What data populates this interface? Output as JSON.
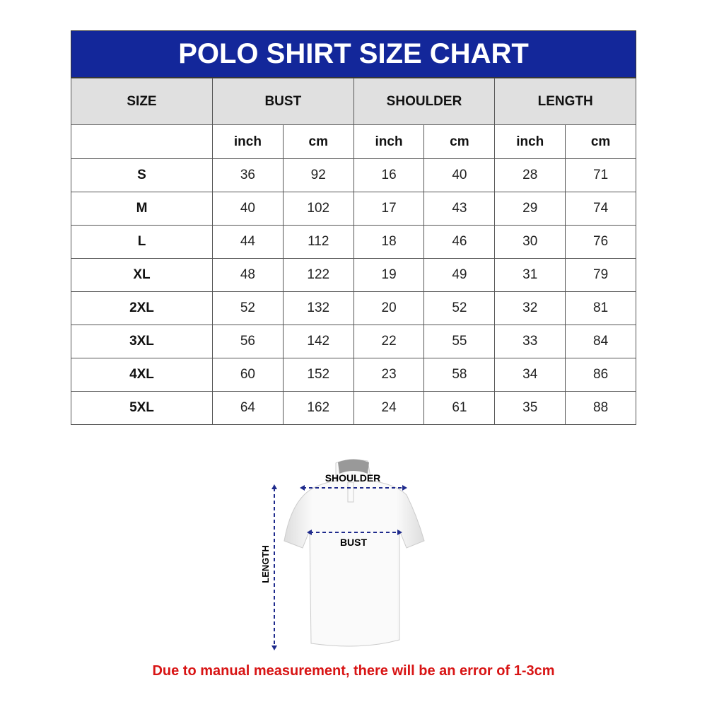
{
  "title": "POLO SHIRT SIZE CHART",
  "headers": [
    "SIZE",
    "BUST",
    "SHOULDER",
    "LENGTH"
  ],
  "units": [
    "inch",
    "cm",
    "inch",
    "cm",
    "inch",
    "cm"
  ],
  "rows": [
    [
      "S",
      "36",
      "92",
      "16",
      "40",
      "28",
      "71"
    ],
    [
      "M",
      "40",
      "102",
      "17",
      "43",
      "29",
      "74"
    ],
    [
      "L",
      "44",
      "112",
      "18",
      "46",
      "30",
      "76"
    ],
    [
      "XL",
      "48",
      "122",
      "19",
      "49",
      "31",
      "79"
    ],
    [
      "2XL",
      "52",
      "132",
      "20",
      "52",
      "32",
      "81"
    ],
    [
      "3XL",
      "56",
      "142",
      "22",
      "55",
      "33",
      "84"
    ],
    [
      "4XL",
      "60",
      "152",
      "23",
      "58",
      "34",
      "86"
    ],
    [
      "5XL",
      "64",
      "162",
      "24",
      "61",
      "35",
      "88"
    ]
  ],
  "diagram": {
    "shoulder": "SHOULDER",
    "bust": "BUST",
    "length": "LENGTH"
  },
  "note": "Due to manual measurement, there will be an error of 1-3cm",
  "colors": {
    "header": "#13279a",
    "note": "#d81414",
    "arrows": "#1e2a8c"
  }
}
